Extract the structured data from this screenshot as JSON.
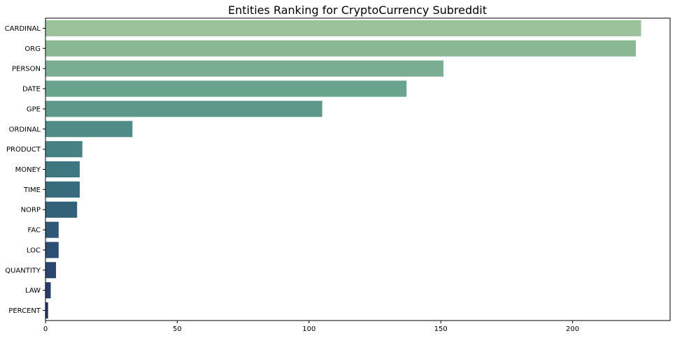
{
  "chart_data": {
    "type": "bar",
    "orientation": "horizontal",
    "title": "Entities Ranking for CryptoCurrency Subreddit",
    "xlabel": "",
    "ylabel": "",
    "categories": [
      "CARDINAL",
      "ORG",
      "PERSON",
      "DATE",
      "GPE",
      "ORDINAL",
      "PRODUCT",
      "MONEY",
      "TIME",
      "NORP",
      "FAC",
      "LOC",
      "QUANTITY",
      "LAW",
      "PERCENT"
    ],
    "values": [
      226,
      224,
      151,
      137,
      105,
      33,
      14,
      13,
      13,
      12,
      5,
      5,
      4,
      2,
      1
    ],
    "colors": [
      "#9bc29a",
      "#8ab895",
      "#7aae92",
      "#6aa38e",
      "#5d988a",
      "#4f8c87",
      "#468183",
      "#3e777f",
      "#386c7d",
      "#33617a",
      "#2f5877",
      "#2c4e73",
      "#2a466f",
      "#283d6a",
      "#273565"
    ],
    "xlim": [
      0,
      237
    ],
    "xticks": [
      0,
      50,
      100,
      150,
      200
    ],
    "grid": false
  }
}
